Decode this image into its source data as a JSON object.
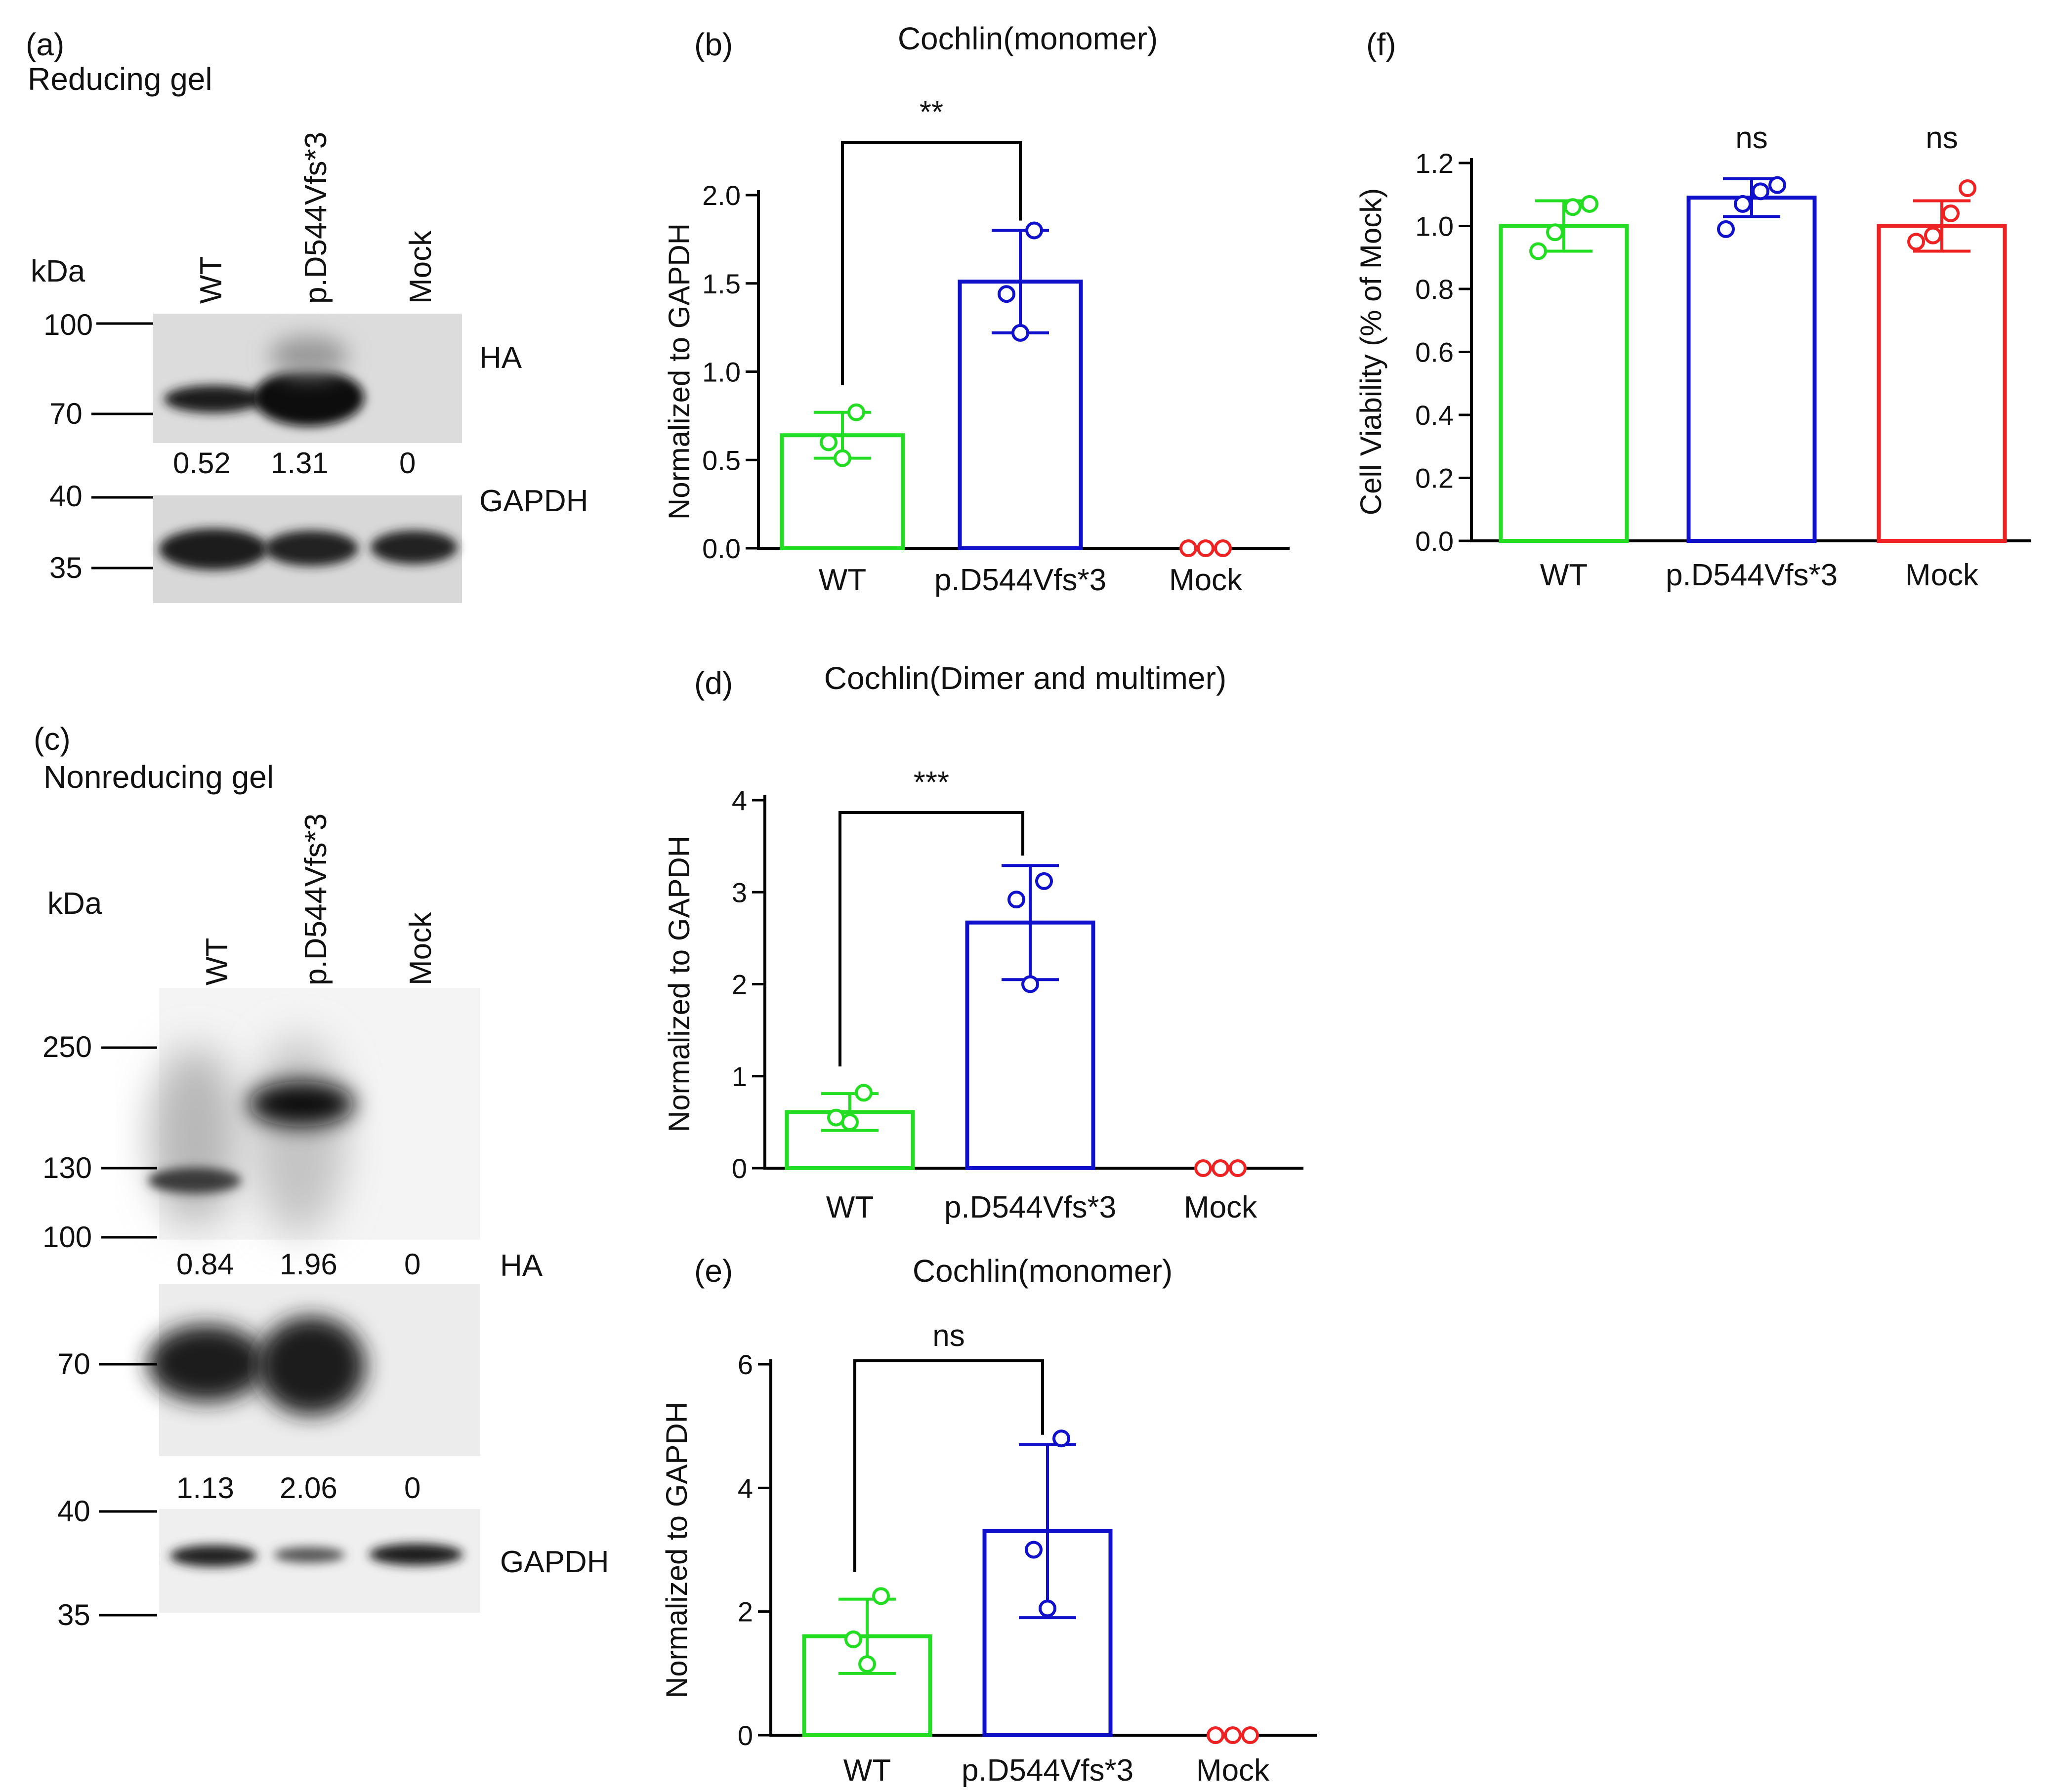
{
  "colors": {
    "WT": "#22dd22",
    "MUT": "#1111cc",
    "Mock": "#ee2222",
    "axis": "#000000",
    "bracket": "#000000"
  },
  "panels": {
    "a": {
      "letter": "(a)",
      "subtitle": "Reducing gel",
      "kda": "kDa",
      "lanes": [
        "WT",
        "p.D544Vfs*3",
        "Mock"
      ],
      "markers": [
        "100",
        "70",
        "40",
        "35"
      ],
      "band_labels": [
        "HA",
        "GAPDH"
      ],
      "quant": [
        "0.52",
        "1.31",
        "0"
      ]
    },
    "c": {
      "letter": "(c)",
      "subtitle": "Nonreducing gel",
      "kda": "kDa",
      "lanes": [
        "WT",
        "p.D544Vfs*3",
        "Mock"
      ],
      "markers": [
        "250",
        "130",
        "100",
        "70",
        "40",
        "35"
      ],
      "band_labels": [
        "HA",
        "GAPDH"
      ],
      "quant_top": [
        "0.84",
        "1.96",
        "0"
      ],
      "quant_bottom": [
        "1.13",
        "2.06",
        "0"
      ]
    }
  },
  "chart_data": [
    {
      "id": "b",
      "letter": "(b)",
      "type": "bar",
      "title": "Cochlin(monomer)",
      "categories": [
        "WT",
        "p.D544Vfs*3",
        "Mock"
      ],
      "values": [
        0.64,
        1.51,
        0.0
      ],
      "errors": [
        0.13,
        0.29,
        0.0
      ],
      "points": [
        [
          0.51,
          0.6,
          0.77
        ],
        [
          1.22,
          1.44,
          1.8
        ],
        [
          0.0,
          0.0,
          0.0
        ]
      ],
      "ylabel": "Normalized to GAPDH",
      "xlabel": "",
      "ylim": [
        0,
        2.0
      ],
      "yticks": [
        "0.0",
        "0.5",
        "1.0",
        "1.5",
        "2.0"
      ],
      "comparisons": [
        {
          "from": 0,
          "to": 1,
          "label": "**"
        }
      ],
      "significance": [
        "",
        "",
        ""
      ]
    },
    {
      "id": "d",
      "letter": "(d)",
      "type": "bar",
      "title": "Cochlin(Dimer and multimer)",
      "categories": [
        "WT",
        "p.D544Vfs*3",
        "Mock"
      ],
      "values": [
        0.61,
        2.67,
        0.0
      ],
      "errors": [
        0.2,
        0.62,
        0.0
      ],
      "points": [
        [
          0.5,
          0.55,
          0.82
        ],
        [
          2.0,
          2.92,
          3.12
        ],
        [
          0.0,
          0.0,
          0.0
        ]
      ],
      "ylabel": "Normalized to GAPDH",
      "xlabel": "",
      "ylim": [
        0,
        4
      ],
      "yticks": [
        "0",
        "1",
        "2",
        "3",
        "4"
      ],
      "comparisons": [
        {
          "from": 0,
          "to": 1,
          "label": "***"
        }
      ],
      "significance": [
        "",
        "",
        ""
      ]
    },
    {
      "id": "e",
      "letter": "(e)",
      "type": "bar",
      "title": "Cochlin(monomer)",
      "categories": [
        "WT",
        "p.D544Vfs*3",
        "Mock"
      ],
      "values": [
        1.6,
        3.3,
        0.0
      ],
      "errors": [
        0.6,
        1.4,
        0.0
      ],
      "points": [
        [
          1.15,
          1.55,
          2.25
        ],
        [
          2.05,
          3.0,
          4.8
        ],
        [
          0.0,
          0.0,
          0.0
        ]
      ],
      "ylabel": "Normalized to GAPDH",
      "xlabel": "",
      "ylim": [
        0,
        6
      ],
      "yticks": [
        "0",
        "2",
        "4",
        "6"
      ],
      "comparisons": [
        {
          "from": 0,
          "to": 1,
          "label": "ns"
        }
      ],
      "significance": [
        "",
        "",
        ""
      ]
    },
    {
      "id": "f",
      "letter": "(f)",
      "type": "bar",
      "title": "",
      "categories": [
        "WT",
        "p.D544Vfs*3",
        "Mock"
      ],
      "values": [
        1.0,
        1.09,
        1.0
      ],
      "errors": [
        0.08,
        0.06,
        0.08
      ],
      "points": [
        [
          0.92,
          0.98,
          1.06,
          1.07
        ],
        [
          0.99,
          1.07,
          1.11,
          1.13
        ],
        [
          0.95,
          0.97,
          1.04,
          1.12
        ]
      ],
      "ylabel": "Cell Viability (% of Mock)",
      "xlabel": "",
      "ylim": [
        0,
        1.2
      ],
      "yticks": [
        "0.0",
        "0.2",
        "0.4",
        "0.6",
        "0.8",
        "1.0",
        "1.2"
      ],
      "comparisons": [],
      "significance": [
        "",
        "ns",
        "ns"
      ]
    }
  ]
}
